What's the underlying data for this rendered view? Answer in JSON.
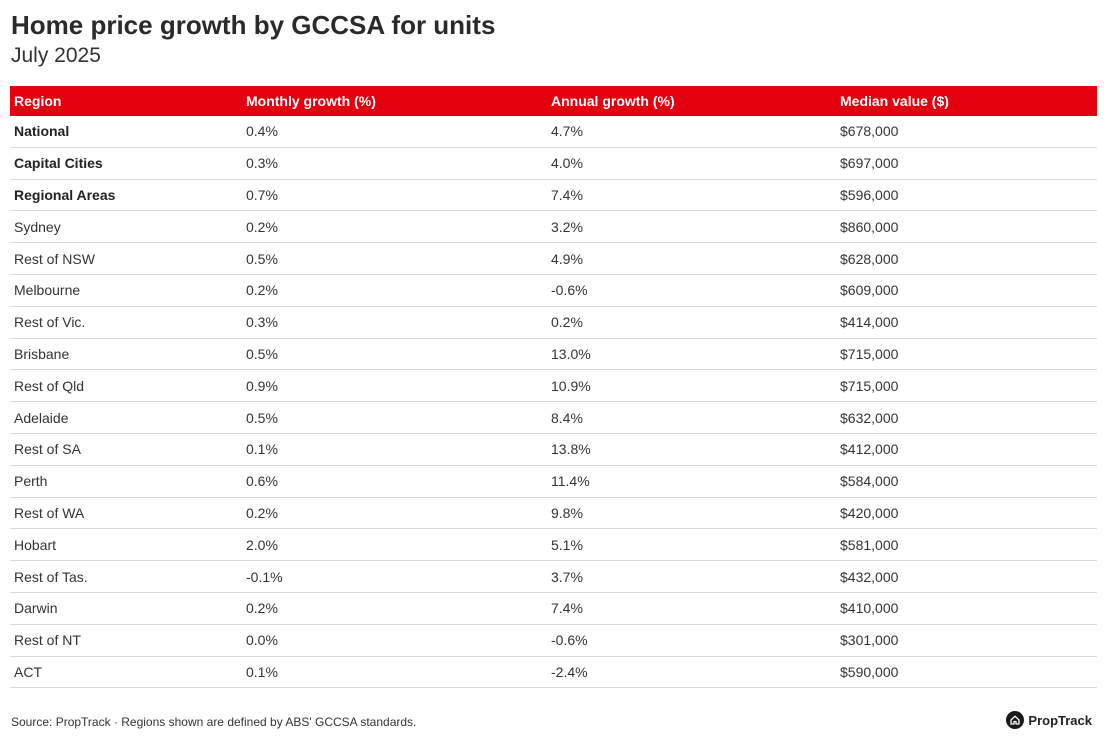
{
  "header": {
    "title": "Home price growth by GCCSA for units",
    "subtitle": "July 2025"
  },
  "chart_data": {
    "type": "table",
    "title": "Home price growth by GCCSA for units",
    "subtitle": "July 2025",
    "columns": [
      "Region",
      "Monthly growth (%)",
      "Annual growth (%)",
      "Median value ($)"
    ],
    "rows": [
      {
        "region": "National",
        "monthly": "0.4%",
        "annual": "4.7%",
        "median": "$678,000",
        "bold": true
      },
      {
        "region": "Capital Cities",
        "monthly": "0.3%",
        "annual": "4.0%",
        "median": "$697,000",
        "bold": true
      },
      {
        "region": "Regional Areas",
        "monthly": "0.7%",
        "annual": "7.4%",
        "median": "$596,000",
        "bold": true
      },
      {
        "region": "Sydney",
        "monthly": "0.2%",
        "annual": "3.2%",
        "median": "$860,000",
        "bold": false
      },
      {
        "region": "Rest of NSW",
        "monthly": "0.5%",
        "annual": "4.9%",
        "median": "$628,000",
        "bold": false
      },
      {
        "region": "Melbourne",
        "monthly": "0.2%",
        "annual": "-0.6%",
        "median": "$609,000",
        "bold": false
      },
      {
        "region": "Rest of Vic.",
        "monthly": "0.3%",
        "annual": "0.2%",
        "median": "$414,000",
        "bold": false
      },
      {
        "region": "Brisbane",
        "monthly": "0.5%",
        "annual": "13.0%",
        "median": "$715,000",
        "bold": false
      },
      {
        "region": "Rest of Qld",
        "monthly": "0.9%",
        "annual": "10.9%",
        "median": "$715,000",
        "bold": false
      },
      {
        "region": "Adelaide",
        "monthly": "0.5%",
        "annual": "8.4%",
        "median": "$632,000",
        "bold": false
      },
      {
        "region": "Rest of SA",
        "monthly": "0.1%",
        "annual": "13.8%",
        "median": "$412,000",
        "bold": false
      },
      {
        "region": "Perth",
        "monthly": "0.6%",
        "annual": "11.4%",
        "median": "$584,000",
        "bold": false
      },
      {
        "region": "Rest of WA",
        "monthly": "0.2%",
        "annual": "9.8%",
        "median": "$420,000",
        "bold": false
      },
      {
        "region": "Hobart",
        "monthly": "2.0%",
        "annual": "5.1%",
        "median": "$581,000",
        "bold": false
      },
      {
        "region": "Rest of Tas.",
        "monthly": "-0.1%",
        "annual": "3.7%",
        "median": "$432,000",
        "bold": false
      },
      {
        "region": "Darwin",
        "monthly": "0.2%",
        "annual": "7.4%",
        "median": "$410,000",
        "bold": false
      },
      {
        "region": "Rest of NT",
        "monthly": "0.0%",
        "annual": "-0.6%",
        "median": "$301,000",
        "bold": false
      },
      {
        "region": "ACT",
        "monthly": "0.1%",
        "annual": "-2.4%",
        "median": "$590,000",
        "bold": false
      }
    ]
  },
  "footer": {
    "source": "Source: PropTrack · Regions shown are defined by ABS' GCCSA standards.",
    "brand": "PropTrack"
  },
  "colors": {
    "header_bg": "#e3000f",
    "header_text": "#ffffff",
    "row_border": "#d9d9d9"
  },
  "icons": {
    "brand": "proptrack-logo-icon"
  }
}
